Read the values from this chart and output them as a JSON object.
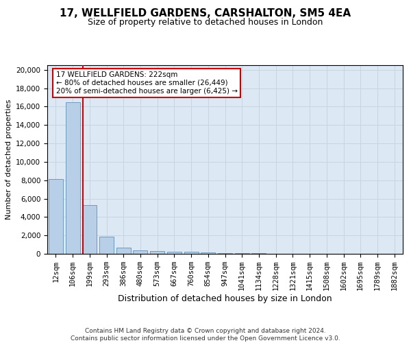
{
  "title": "17, WELLFIELD GARDENS, CARSHALTON, SM5 4EA",
  "subtitle": "Size of property relative to detached houses in London",
  "xlabel": "Distribution of detached houses by size in London",
  "ylabel": "Number of detached properties",
  "categories": [
    "12sqm",
    "106sqm",
    "199sqm",
    "293sqm",
    "386sqm",
    "480sqm",
    "573sqm",
    "667sqm",
    "760sqm",
    "854sqm",
    "947sqm",
    "1041sqm",
    "1134sqm",
    "1228sqm",
    "1321sqm",
    "1415sqm",
    "1508sqm",
    "1602sqm",
    "1695sqm",
    "1789sqm",
    "1882sqm"
  ],
  "values": [
    8100,
    16500,
    5300,
    1850,
    700,
    380,
    280,
    220,
    200,
    150,
    90,
    60,
    40,
    30,
    20,
    15,
    10,
    8,
    5,
    4,
    3
  ],
  "bar_color": "#b8cfe8",
  "bar_edge_color": "#6090b8",
  "red_line_x": 1.6,
  "annotation_text": "17 WELLFIELD GARDENS: 222sqm\n← 80% of detached houses are smaller (26,449)\n20% of semi-detached houses are larger (6,425) →",
  "annotation_box_color": "#ffffff",
  "annotation_box_edge_color": "#cc0000",
  "ylim": [
    0,
    20500
  ],
  "yticks": [
    0,
    2000,
    4000,
    6000,
    8000,
    10000,
    12000,
    14000,
    16000,
    18000,
    20000
  ],
  "grid_color": "#c8d4e0",
  "bg_color": "#dce8f4",
  "footer_text": "Contains HM Land Registry data © Crown copyright and database right 2024.\nContains public sector information licensed under the Open Government Licence v3.0.",
  "title_fontsize": 11,
  "subtitle_fontsize": 9,
  "xlabel_fontsize": 9,
  "ylabel_fontsize": 8,
  "tick_fontsize": 7.5,
  "annotation_fontsize": 7.5,
  "footer_fontsize": 6.5
}
